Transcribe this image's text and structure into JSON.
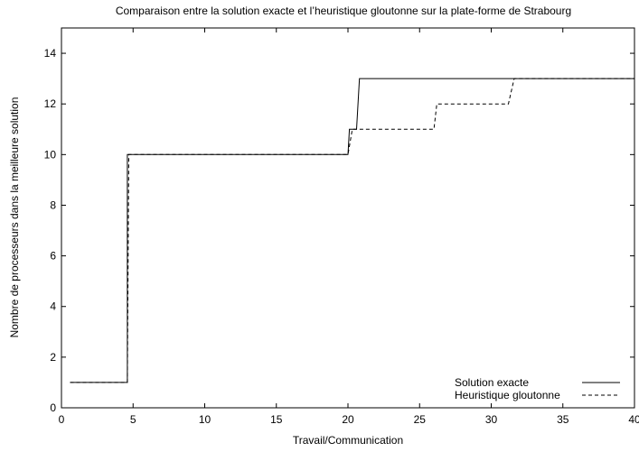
{
  "chart_data": {
    "type": "line",
    "title": "Comparaison entre la solution exacte et l’heuristique gloutonne sur la plate-forme de Strabourg",
    "xlabel": "Travail/Communication",
    "ylabel": "Nombre de processeurs dans la meilleure solution",
    "xlim": [
      0,
      40
    ],
    "ylim": [
      0,
      15
    ],
    "xticks": [
      0,
      5,
      10,
      15,
      20,
      25,
      30,
      35,
      40
    ],
    "xtick_labels": [
      "0",
      "5",
      "10",
      "15",
      "20",
      "25",
      "30",
      "35",
      "40"
    ],
    "yticks": [
      0,
      2,
      4,
      6,
      8,
      10,
      12,
      14
    ],
    "ytick_labels": [
      "0",
      "2",
      "4",
      "6",
      "8",
      "10",
      "12",
      "14"
    ],
    "grid": false,
    "legend_position": "bottom-right",
    "series": [
      {
        "name": "Solution exacte",
        "style": "solid",
        "color": "#000000",
        "points": [
          [
            0.6,
            1
          ],
          [
            4.6,
            1
          ],
          [
            4.6,
            10
          ],
          [
            20.0,
            10
          ],
          [
            20.1,
            11
          ],
          [
            20.6,
            11
          ],
          [
            20.8,
            13
          ],
          [
            40,
            13
          ]
        ]
      },
      {
        "name": "Heuristique gloutonne",
        "style": "dashed",
        "color": "#000000",
        "points": [
          [
            0.6,
            1
          ],
          [
            4.6,
            1
          ],
          [
            4.7,
            10
          ],
          [
            20.0,
            10
          ],
          [
            20.3,
            11
          ],
          [
            26.0,
            11
          ],
          [
            26.2,
            12
          ],
          [
            31.2,
            12
          ],
          [
            31.6,
            13
          ],
          [
            40,
            13
          ]
        ]
      }
    ]
  }
}
